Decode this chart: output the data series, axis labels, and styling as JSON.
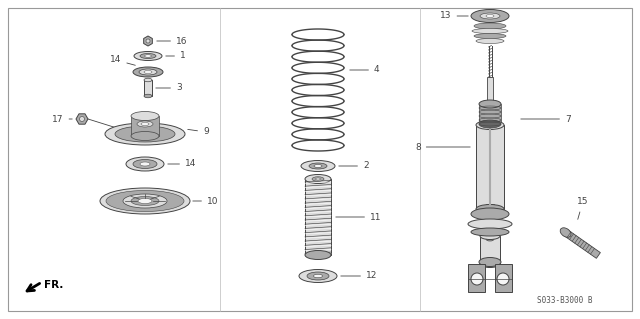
{
  "bg_color": "#ffffff",
  "line_color": "#444444",
  "part_gray": "#aaaaaa",
  "part_light": "#dddddd",
  "part_dark": "#666666",
  "part_white": "#f5f5f5",
  "diagram_code": "S033-B3000 B",
  "border_color": "#999999"
}
